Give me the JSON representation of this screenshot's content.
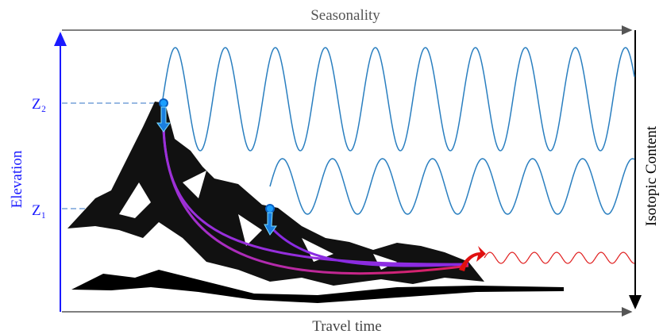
{
  "header": {
    "title": "Seasonality"
  },
  "axes": {
    "x_label": "Travel time",
    "y_label": "Elevation",
    "y2_label": "Isotopic Content"
  },
  "levels": [
    {
      "label": "Z₂"
    },
    {
      "label": "Z₁"
    }
  ]
}
